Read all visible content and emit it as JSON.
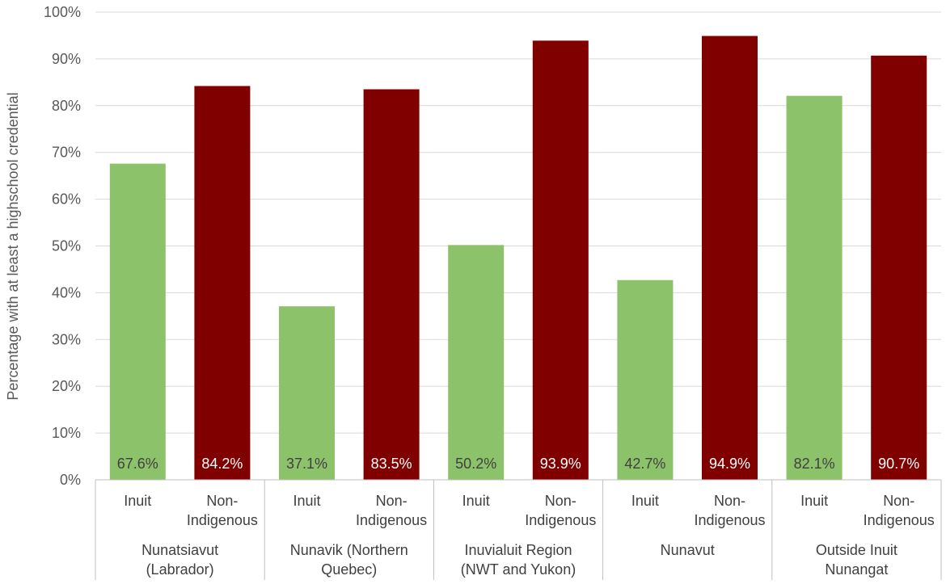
{
  "chart_data": {
    "type": "bar",
    "title": "",
    "xlabel": "",
    "ylabel": "Percentage with at least a highschool credential",
    "ylim": [
      0,
      100
    ],
    "y_ticks": [
      "0%",
      "10%",
      "20%",
      "30%",
      "40%",
      "50%",
      "60%",
      "70%",
      "80%",
      "90%",
      "100%"
    ],
    "grid": true,
    "groups": [
      {
        "label_lines": [
          "Nunatsiavut",
          "(Labrador)"
        ],
        "bars": [
          {
            "category_lines": [
              "Inuit"
            ],
            "value": 67.6,
            "label": "67.6%",
            "color": "#8cc26a"
          },
          {
            "category_lines": [
              "Non-",
              "Indigenous"
            ],
            "value": 84.2,
            "label": "84.2%",
            "color": "#800000"
          }
        ]
      },
      {
        "label_lines": [
          "Nunavik (Northern",
          "Quebec)"
        ],
        "bars": [
          {
            "category_lines": [
              "Inuit"
            ],
            "value": 37.1,
            "label": "37.1%",
            "color": "#8cc26a"
          },
          {
            "category_lines": [
              "Non-",
              "Indigenous"
            ],
            "value": 83.5,
            "label": "83.5%",
            "color": "#800000"
          }
        ]
      },
      {
        "label_lines": [
          "Inuvialuit Region",
          "(NWT and Yukon)"
        ],
        "bars": [
          {
            "category_lines": [
              "Inuit"
            ],
            "value": 50.2,
            "label": "50.2%",
            "color": "#8cc26a"
          },
          {
            "category_lines": [
              "Non-",
              "Indigenous"
            ],
            "value": 93.9,
            "label": "93.9%",
            "color": "#800000"
          }
        ]
      },
      {
        "label_lines": [
          "Nunavut"
        ],
        "bars": [
          {
            "category_lines": [
              "Inuit"
            ],
            "value": 42.7,
            "label": "42.7%",
            "color": "#8cc26a"
          },
          {
            "category_lines": [
              "Non-",
              "Indigenous"
            ],
            "value": 94.9,
            "label": "94.9%",
            "color": "#800000"
          }
        ]
      },
      {
        "label_lines": [
          "Outside Inuit",
          "Nunangat"
        ],
        "bars": [
          {
            "category_lines": [
              "Inuit"
            ],
            "value": 82.1,
            "label": "82.1%",
            "color": "#8cc26a"
          },
          {
            "category_lines": [
              "Non-",
              "Indigenous"
            ],
            "value": 90.7,
            "label": "90.7%",
            "color": "#800000"
          }
        ]
      }
    ],
    "colors": {
      "inuit": "#8cc26a",
      "non_indigenous": "#800000",
      "grid": "#d9d9d9"
    }
  }
}
